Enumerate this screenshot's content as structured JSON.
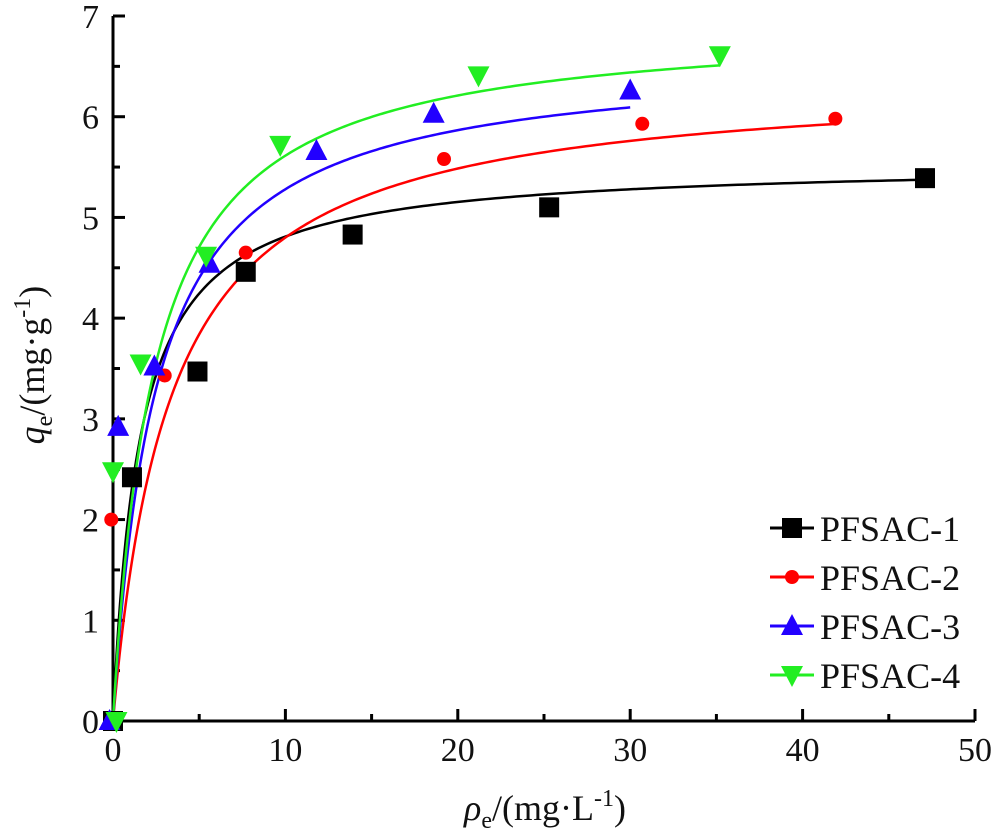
{
  "chart_data": {
    "type": "scatter",
    "xlabel": {
      "symbol": "ρ",
      "sub": "e",
      "unit_pre": "/(mg·L",
      "sup": "-1",
      "unit_post": ")"
    },
    "ylabel": {
      "symbol": "q",
      "sub": "e",
      "unit_pre": "/(mg·g",
      "sup": "-1",
      "unit_post": ")"
    },
    "xlim": [
      0,
      50
    ],
    "ylim": [
      0,
      7
    ],
    "xticks": [
      0,
      10,
      20,
      30,
      40,
      50
    ],
    "yticks": [
      0,
      1,
      2,
      3,
      4,
      5,
      6,
      7
    ],
    "grid": false,
    "legend_position": "bottom-right",
    "series": [
      {
        "name": "PFSAC-1",
        "color": "#000000",
        "marker": "square",
        "points": [
          [
            0.0,
            0.0
          ],
          [
            1.1,
            2.42
          ],
          [
            4.9,
            3.47
          ],
          [
            7.7,
            4.46
          ],
          [
            13.9,
            4.83
          ],
          [
            25.3,
            5.1
          ],
          [
            47.1,
            5.39
          ]
        ],
        "fit": {
          "qmax": 5.55,
          "K": 0.65,
          "xmax": 47.1
        }
      },
      {
        "name": "PFSAC-2",
        "color": "#ff0000",
        "marker": "circle",
        "points": [
          [
            0.0,
            0.0
          ],
          [
            -0.1,
            2.0
          ],
          [
            3.0,
            3.43
          ],
          [
            7.7,
            4.65
          ],
          [
            19.2,
            5.58
          ],
          [
            30.7,
            5.93
          ],
          [
            41.9,
            5.98
          ]
        ],
        "fit": {
          "qmax": 6.4,
          "K": 0.3,
          "xmax": 41.9
        }
      },
      {
        "name": "PFSAC-3",
        "color": "#2200ff",
        "marker": "triangle-up",
        "points": [
          [
            -0.2,
            0.0
          ],
          [
            0.3,
            2.92
          ],
          [
            2.4,
            3.52
          ],
          [
            5.6,
            4.54
          ],
          [
            11.8,
            5.66
          ],
          [
            18.6,
            6.03
          ],
          [
            30.0,
            6.26
          ]
        ],
        "fit": {
          "qmax": 6.6,
          "K": 0.4,
          "xmax": 30.0
        }
      },
      {
        "name": "PFSAC-4",
        "color": "#22ee22",
        "marker": "triangle-down",
        "points": [
          [
            0.0,
            2.48
          ],
          [
            0.2,
            0.0
          ],
          [
            1.6,
            3.55
          ],
          [
            5.4,
            4.62
          ],
          [
            9.7,
            5.72
          ],
          [
            21.2,
            6.41
          ],
          [
            35.2,
            6.61
          ]
        ],
        "fit": {
          "qmax": 6.95,
          "K": 0.42,
          "xmax": 35.2
        }
      }
    ]
  }
}
